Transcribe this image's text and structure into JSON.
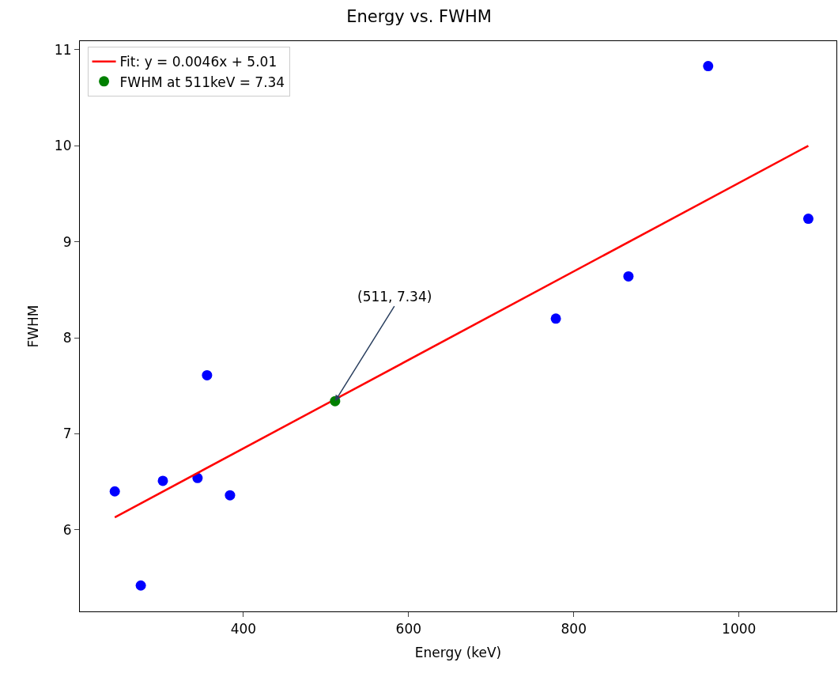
{
  "chart_data": {
    "type": "scatter",
    "title": "Energy vs. FWHM",
    "xlabel": "Energy (keV)",
    "ylabel": "FWHM",
    "xlim": [
      202,
      1118
    ],
    "ylim": [
      5.15,
      11.09
    ],
    "xticks": [
      400,
      600,
      800,
      1000
    ],
    "yticks": [
      6,
      7,
      8,
      9,
      10,
      11
    ],
    "grid": false,
    "legend": "top left",
    "marker": "circle",
    "series": [
      {
        "color": "#0000ff",
        "x": [
          244.3,
          275.8,
          302.5,
          344.5,
          356,
          383.8,
          778.3,
          866.2,
          962.7,
          1084
        ],
        "values": [
          6.4,
          5.42,
          6.51,
          6.54,
          7.61,
          6.36,
          8.2,
          8.64,
          10.83,
          9.24
        ]
      },
      {
        "type": "line",
        "marker": "none",
        "name": "Fit: y = 0.0046x + 5.01",
        "color": "#ff0000",
        "x": [
          244.3,
          1084
        ],
        "values": [
          6.13,
          10.0
        ]
      },
      {
        "name": "FWHM at 511keV = 7.34",
        "color": "#008000",
        "x": [
          511
        ],
        "values": [
          7.34
        ]
      }
    ],
    "annotations": [
      {
        "text": "(511, 7.34)",
        "x": 511,
        "y": 7.34
      }
    ]
  }
}
